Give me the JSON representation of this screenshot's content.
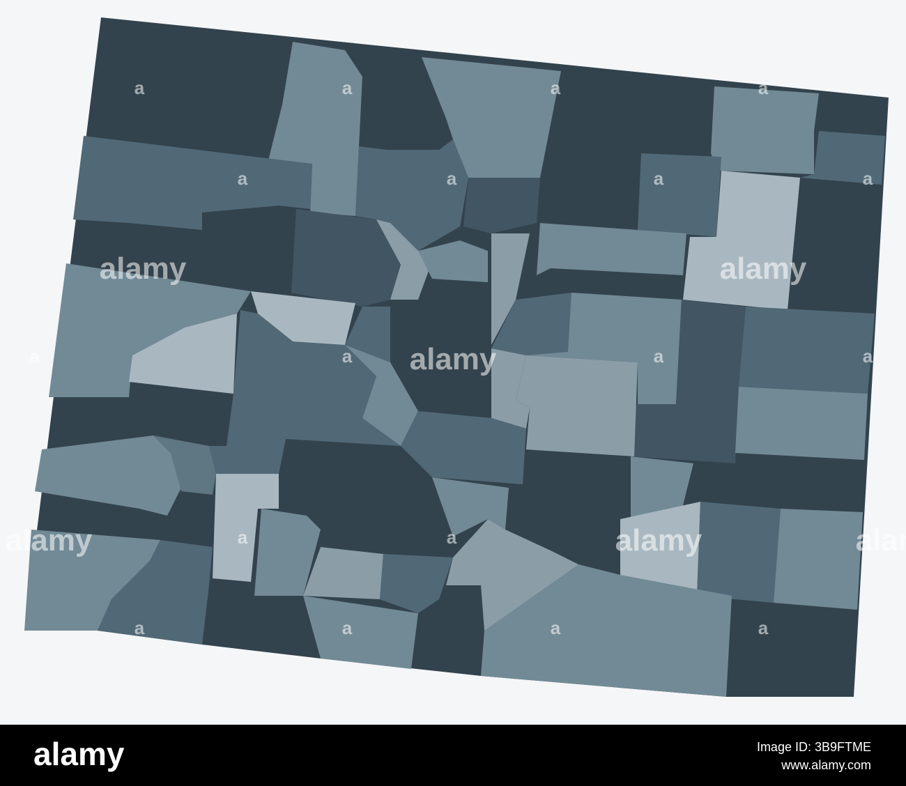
{
  "map": {
    "watermarks": [
      "alamy",
      "alamy",
      "alamy",
      "alamy",
      "alamy",
      "alamy"
    ],
    "logo_marks": [
      "a",
      "a",
      "a",
      "a",
      "a",
      "a",
      "a",
      "a",
      "a",
      "a",
      "a",
      "a",
      "a",
      "a",
      "a",
      "a",
      "a",
      "a"
    ]
  },
  "footer": {
    "brand": "alamy",
    "image_id": "Image ID: 3B9FTME",
    "url": "www.alamy.com"
  }
}
